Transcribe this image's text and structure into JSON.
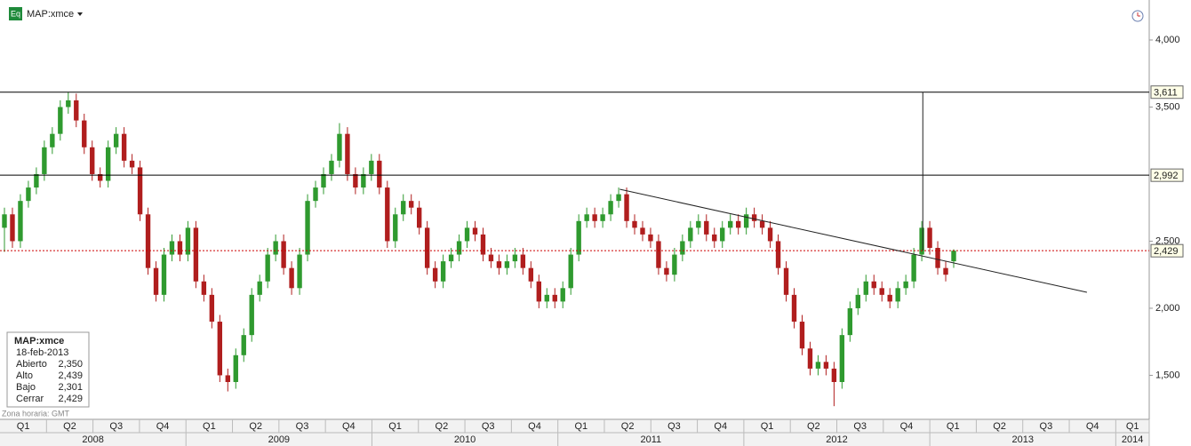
{
  "header": {
    "icon": "Eq",
    "symbol": "MAP:xmce"
  },
  "chart_data": {
    "type": "candlestick",
    "open": [
      2600,
      2700,
      2500,
      2800,
      2900,
      3000,
      3200,
      3300,
      3500,
      3550,
      3400,
      3200,
      3000,
      2950,
      3200,
      3300,
      3100,
      3050,
      2700,
      2300,
      2100,
      2400,
      2500,
      2400,
      2600,
      2200,
      2100,
      1900,
      1500,
      1450,
      1650,
      1800,
      2100,
      2200,
      2400,
      2500,
      2300,
      2150,
      2400,
      2800,
      2900,
      3000,
      3100,
      3300,
      3000,
      2900,
      3000,
      3100,
      2900,
      2500,
      2700,
      2800,
      2750,
      2600,
      2300,
      2200,
      2350,
      2400,
      2500,
      2600,
      2550,
      2400,
      2350,
      2300,
      2350,
      2400,
      2300,
      2200,
      2050,
      2100,
      2050,
      2150,
      2400,
      2650,
      2700,
      2650,
      2700,
      2800,
      2850,
      2650,
      2600,
      2550,
      2500,
      2300,
      2250,
      2400,
      2500,
      2600,
      2650,
      2550,
      2500,
      2600,
      2650,
      2600,
      2700,
      2650,
      2600,
      2500,
      2300,
      2100,
      1900,
      1700,
      1550,
      1600,
      1550,
      1450,
      1800,
      2000,
      2100,
      2200,
      2150,
      2100,
      2050,
      2150,
      2200,
      2400,
      2600,
      2450,
      2300,
      2350
    ],
    "high": [
      2750,
      2750,
      2850,
      2950,
      3050,
      3250,
      3350,
      3550,
      3611,
      3600,
      3450,
      3250,
      3050,
      3250,
      3350,
      3350,
      3150,
      3100,
      2750,
      2350,
      2450,
      2550,
      2550,
      2650,
      2650,
      2250,
      2150,
      1950,
      1550,
      1700,
      1850,
      2150,
      2250,
      2450,
      2550,
      2550,
      2350,
      2450,
      2850,
      2950,
      3050,
      3150,
      3380,
      3350,
      3050,
      3050,
      3150,
      3150,
      2950,
      2750,
      2850,
      2850,
      2800,
      2650,
      2350,
      2400,
      2450,
      2550,
      2650,
      2650,
      2600,
      2450,
      2400,
      2400,
      2450,
      2450,
      2350,
      2250,
      2150,
      2150,
      2200,
      2450,
      2700,
      2750,
      2750,
      2750,
      2850,
      2900,
      2900,
      2700,
      2650,
      2600,
      2550,
      2350,
      2450,
      2550,
      2650,
      2700,
      2700,
      2600,
      2650,
      2700,
      2700,
      2750,
      2750,
      2700,
      2650,
      2550,
      2350,
      2150,
      1950,
      1750,
      1650,
      1650,
      1600,
      1850,
      2050,
      2150,
      2250,
      2250,
      2200,
      2150,
      2200,
      2250,
      2450,
      2650,
      2650,
      2500,
      2350,
      2439
    ],
    "low": [
      2420,
      2450,
      2450,
      2750,
      2850,
      2950,
      3150,
      3250,
      3450,
      3350,
      3150,
      2950,
      2900,
      2900,
      3150,
      3050,
      3000,
      2650,
      2250,
      2050,
      2050,
      2350,
      2350,
      2350,
      2150,
      2050,
      1850,
      1450,
      1380,
      1400,
      1600,
      1750,
      2050,
      2150,
      2350,
      2250,
      2100,
      2100,
      2350,
      2750,
      2850,
      2950,
      3050,
      2950,
      2850,
      2850,
      2950,
      2850,
      2450,
      2450,
      2650,
      2700,
      2550,
      2250,
      2150,
      2150,
      2300,
      2350,
      2450,
      2500,
      2350,
      2300,
      2250,
      2250,
      2300,
      2250,
      2150,
      2000,
      2000,
      2000,
      2000,
      2100,
      2350,
      2600,
      2600,
      2600,
      2650,
      2750,
      2600,
      2550,
      2500,
      2450,
      2250,
      2200,
      2200,
      2350,
      2450,
      2550,
      2500,
      2450,
      2450,
      2550,
      2550,
      2550,
      2600,
      2550,
      2450,
      2250,
      2050,
      1850,
      1650,
      1500,
      1500,
      1500,
      1270,
      1400,
      1750,
      1950,
      2050,
      2100,
      2050,
      2000,
      2000,
      2100,
      2150,
      2350,
      2400,
      2250,
      2200,
      2301
    ],
    "close": [
      2700,
      2500,
      2800,
      2900,
      3000,
      3200,
      3300,
      3500,
      3550,
      3400,
      3200,
      3000,
      2950,
      3200,
      3300,
      3100,
      3050,
      2700,
      2300,
      2100,
      2400,
      2500,
      2400,
      2600,
      2200,
      2100,
      1900,
      1500,
      1450,
      1650,
      1800,
      2100,
      2200,
      2400,
      2500,
      2300,
      2150,
      2400,
      2800,
      2900,
      3000,
      3100,
      3300,
      3000,
      2900,
      3000,
      3100,
      2900,
      2500,
      2700,
      2800,
      2750,
      2600,
      2300,
      2200,
      2350,
      2400,
      2500,
      2600,
      2550,
      2400,
      2350,
      2300,
      2350,
      2400,
      2300,
      2200,
      2050,
      2100,
      2050,
      2150,
      2400,
      2650,
      2700,
      2650,
      2700,
      2800,
      2850,
      2650,
      2600,
      2550,
      2500,
      2300,
      2250,
      2400,
      2500,
      2600,
      2650,
      2550,
      2500,
      2600,
      2650,
      2600,
      2700,
      2650,
      2600,
      2500,
      2300,
      2100,
      1900,
      1700,
      1550,
      1600,
      1550,
      1450,
      1800,
      2000,
      2100,
      2200,
      2150,
      2100,
      2050,
      2150,
      2200,
      2400,
      2600,
      2450,
      2300,
      2250,
      2429
    ],
    "up_color": "#2f9a2f",
    "down_color": "#b01e1e",
    "ylim": [
      1185,
      4298
    ],
    "yticks": [
      {
        "value": 1500,
        "label": "1,500"
      },
      {
        "value": 2000,
        "label": "2,000"
      },
      {
        "value": 2500,
        "label": "2,500"
      },
      {
        "value": 3500,
        "label": "3,500"
      },
      {
        "value": 4000,
        "label": "4,000"
      }
    ],
    "xlim": [
      0,
      24.72
    ],
    "quarters": [
      "Q1",
      "Q2",
      "Q3",
      "Q4",
      "Q1",
      "Q2",
      "Q3",
      "Q4",
      "Q1",
      "Q2",
      "Q3",
      "Q4",
      "Q1",
      "Q2",
      "Q3",
      "Q4",
      "Q1",
      "Q2",
      "Q3",
      "Q4",
      "Q1",
      "Q2",
      "Q3",
      "Q4",
      "Q1"
    ],
    "years": [
      "2008",
      "2009",
      "2010",
      "2011",
      "2012",
      "2013",
      "2014"
    ],
    "hlines": [
      {
        "value": 3611,
        "label": "3,611",
        "color": "#000000"
      },
      {
        "value": 2992,
        "label": "2,992",
        "color": "#000000"
      },
      {
        "value": 2429,
        "label": "2,429",
        "color": "#cc0000",
        "dotted": true
      }
    ],
    "lines": [
      {
        "x": [
          13.33,
          23.38
        ],
        "y": [
          2887,
          2119
        ]
      },
      {
        "x": [
          19.85,
          19.85
        ],
        "y": [
          3611,
          2430
        ]
      }
    ],
    "timezone": "Zona horaria: GMT"
  },
  "info_box": {
    "symbol": "MAP:xmce",
    "date": "18-feb-2013",
    "rows": [
      {
        "label": "Abierto",
        "value": "2,350"
      },
      {
        "label": "Alto",
        "value": "2,439"
      },
      {
        "label": "Bajo",
        "value": "2,301"
      },
      {
        "label": "Cerrar",
        "value": "2,429"
      }
    ]
  }
}
